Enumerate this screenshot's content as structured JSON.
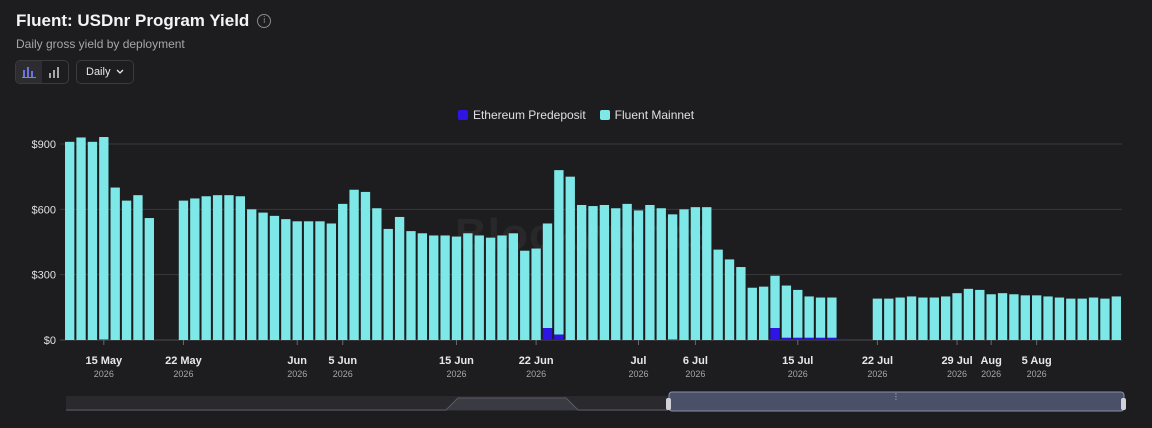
{
  "header": {
    "title": "Fluent: USDnr Program Yield",
    "subtitle": "Daily gross yield by deployment",
    "info_glyph": "i",
    "granularity": "Daily"
  },
  "watermark": "Blockworks",
  "colors": {
    "ethereum": "#2f14e6",
    "fluent": "#7ee8e8",
    "grid": "#3a3a3e",
    "background": "#1d1d1f"
  },
  "chart_data": {
    "type": "bar",
    "stacked": true,
    "ylim": [
      0,
      900
    ],
    "yticks": [
      "$0",
      "$300",
      "$600",
      "$900"
    ],
    "ytick_values": [
      0,
      300,
      600,
      900
    ],
    "x_start": "2026-05-12",
    "x_end": "2026-08-12",
    "xticks": [
      {
        "date": "2026-05-15",
        "label": "15 May",
        "year": "2026"
      },
      {
        "date": "2026-05-22",
        "label": "22 May",
        "year": "2026"
      },
      {
        "date": "2026-06-01",
        "label": "Jun",
        "year": "2026"
      },
      {
        "date": "2026-06-05",
        "label": "5 Jun",
        "year": "2026"
      },
      {
        "date": "2026-06-15",
        "label": "15 Jun",
        "year": "2026"
      },
      {
        "date": "2026-06-22",
        "label": "22 Jun",
        "year": "2026"
      },
      {
        "date": "2026-07-01",
        "label": "Jul",
        "year": "2026"
      },
      {
        "date": "2026-07-06",
        "label": "6 Jul",
        "year": "2026"
      },
      {
        "date": "2026-07-15",
        "label": "15 Jul",
        "year": "2026"
      },
      {
        "date": "2026-07-22",
        "label": "22 Jul",
        "year": "2026"
      },
      {
        "date": "2026-07-29",
        "label": "29 Jul",
        "year": "2026"
      },
      {
        "date": "2026-08-01",
        "label": "Aug",
        "year": "2026"
      },
      {
        "date": "2026-08-05",
        "label": "5 Aug",
        "year": "2026"
      }
    ],
    "legend_position": "top-center",
    "series": [
      {
        "name": "Ethereum Predeposit",
        "color": "#2f14e6",
        "values": [
          0,
          0,
          0,
          2,
          0,
          0,
          0,
          0,
          0,
          null,
          0,
          0,
          0,
          0,
          0,
          0,
          0,
          0,
          0,
          0,
          0,
          0,
          0,
          0,
          0,
          0,
          0,
          0,
          0,
          0,
          0,
          0,
          0,
          0,
          0,
          0,
          0,
          0,
          0,
          0,
          0,
          0,
          55,
          25,
          0,
          0,
          0,
          0,
          0,
          0,
          0,
          0,
          0,
          2,
          0,
          0,
          0,
          0,
          0,
          0,
          0,
          0,
          55,
          10,
          10,
          10,
          10,
          10,
          5,
          0,
          0,
          0,
          null,
          null,
          null,
          0,
          0,
          0,
          0,
          0,
          0,
          0,
          0,
          0,
          0,
          0,
          0,
          0,
          0,
          0,
          0,
          0,
          0,
          0
        ]
      },
      {
        "name": "Fluent Mainnet",
        "color": "#7ee8e8",
        "values": [
          910,
          930,
          910,
          930,
          700,
          640,
          665,
          560,
          null,
          null,
          640,
          650,
          660,
          665,
          665,
          660,
          600,
          585,
          570,
          555,
          545,
          545,
          545,
          535,
          625,
          690,
          680,
          605,
          510,
          565,
          500,
          490,
          480,
          480,
          475,
          490,
          480,
          470,
          480,
          490,
          410,
          420,
          480,
          755,
          750,
          620,
          615,
          620,
          605,
          625,
          595,
          620,
          605,
          575,
          600,
          610,
          610,
          415,
          370,
          335,
          240,
          245,
          240,
          240,
          220,
          190,
          185,
          185,
          null,
          null,
          null,
          190,
          190,
          195,
          200,
          195,
          195,
          200,
          215,
          235,
          230,
          210,
          215,
          210,
          205,
          205,
          200,
          195,
          190,
          190,
          195,
          190,
          200,
          195
        ]
      }
    ]
  },
  "navigator": {
    "handle_glyph": "⋮"
  }
}
